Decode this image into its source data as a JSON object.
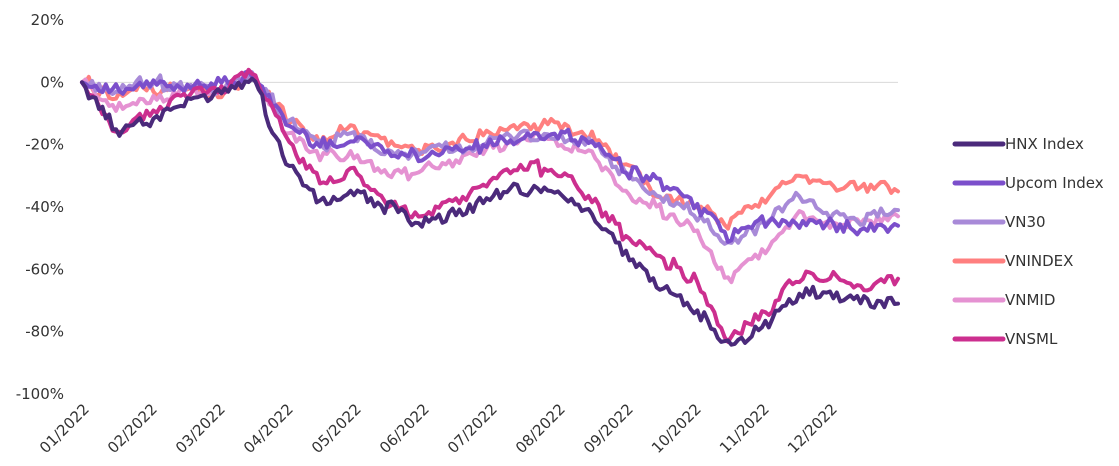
{
  "chart_data": {
    "type": "line",
    "title": "",
    "xlabel": "",
    "ylabel": "",
    "ylim": [
      -100,
      20
    ],
    "yticks": [
      20,
      0,
      -20,
      -40,
      -60,
      -80,
      -100
    ],
    "ytick_labels": [
      "20%",
      "0%",
      "-20%",
      "-40%",
      "-60%",
      "-80%",
      "-100%"
    ],
    "x_labels": [
      "01/2022",
      "02/2022",
      "03/2022",
      "04/2022",
      "05/2022",
      "06/2022",
      "07/2022",
      "08/2022",
      "09/2022",
      "10/2022",
      "11/2022",
      "12/2022"
    ],
    "legend_position": "right",
    "grid": "zero-line only",
    "x": [
      0,
      0.5,
      1,
      1.5,
      2,
      2.5,
      3,
      3.5,
      4,
      4.5,
      5,
      5.5,
      6,
      6.5,
      7,
      7.5,
      8,
      8.5,
      9,
      9.5,
      10,
      10.5,
      11,
      11.5,
      12
    ],
    "series": [
      {
        "name": "HNX Index",
        "color": "#4B2A7B",
        "values": [
          0,
          -15,
          -12,
          -7,
          -2,
          2,
          -25,
          -38,
          -35,
          -40,
          -45,
          -43,
          -37,
          -34,
          -35,
          -42,
          -55,
          -65,
          -72,
          -85,
          -78,
          -68,
          -67,
          -70,
          -71
        ]
      },
      {
        "name": "Upcom Index",
        "color": "#7B4FCB",
        "values": [
          0,
          -3,
          -1,
          -2,
          0,
          3,
          -13,
          -20,
          -18,
          -22,
          -24,
          -22,
          -20,
          -18,
          -17,
          -20,
          -28,
          -32,
          -38,
          -50,
          -45,
          -45,
          -45,
          -47,
          -46
        ]
      },
      {
        "name": "VN30",
        "color": "#A88AD8",
        "values": [
          0,
          -3,
          0,
          -1,
          -2,
          2,
          -12,
          -20,
          -17,
          -23,
          -23,
          -21,
          -19,
          -17,
          -17,
          -20,
          -30,
          -37,
          -42,
          -52,
          -46,
          -37,
          -42,
          -44,
          -41
        ]
      },
      {
        "name": "VNINDEX",
        "color": "#FF7F7F",
        "values": [
          0,
          -4,
          -2,
          -2,
          -3,
          1,
          -10,
          -18,
          -14,
          -19,
          -22,
          -20,
          -16,
          -14,
          -14,
          -17,
          -27,
          -37,
          -39,
          -45,
          -39,
          -29,
          -33,
          -34,
          -35
        ]
      },
      {
        "name": "VNMID",
        "color": "#E592D2",
        "values": [
          0,
          -9,
          -6,
          -2,
          -4,
          3,
          -15,
          -25,
          -22,
          -30,
          -28,
          -25,
          -21,
          -18,
          -19,
          -23,
          -35,
          -41,
          -47,
          -63,
          -55,
          -43,
          -46,
          -45,
          -43
        ]
      },
      {
        "name": "VNSML",
        "color": "#CC2F8F",
        "values": [
          0,
          -17,
          -10,
          -4,
          -2,
          4,
          -18,
          -32,
          -28,
          -40,
          -42,
          -38,
          -32,
          -27,
          -28,
          -38,
          -50,
          -56,
          -63,
          -83,
          -75,
          -63,
          -62,
          -65,
          -63
        ]
      }
    ]
  }
}
